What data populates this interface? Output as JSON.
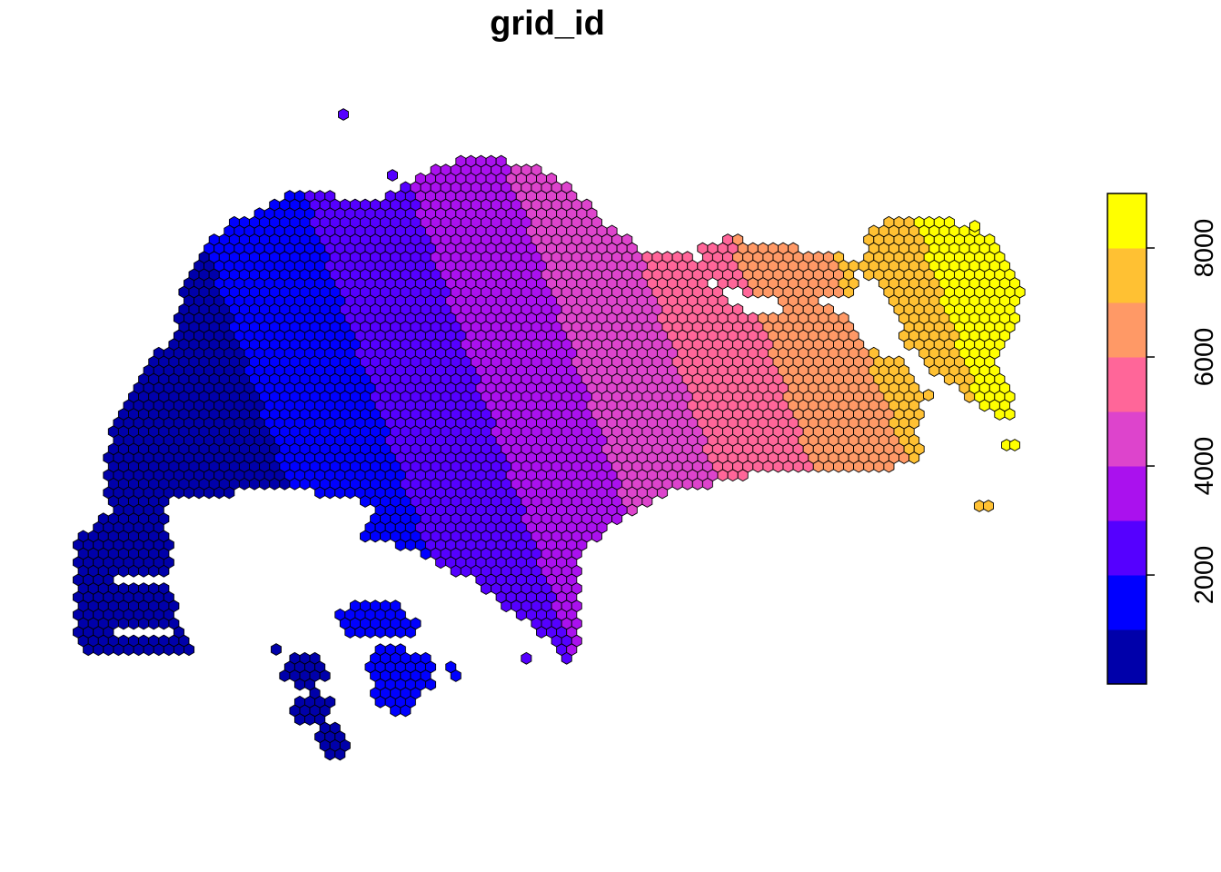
{
  "title": "grid_id",
  "legend": {
    "ticks": [
      {
        "value": 2000,
        "label": "2000"
      },
      {
        "value": 4000,
        "label": "4000"
      },
      {
        "value": 6000,
        "label": "6000"
      },
      {
        "value": 8000,
        "label": "8000"
      }
    ],
    "min": 1,
    "max": 9000,
    "colors": [
      "#0000AA",
      "#0000FF",
      "#5500FF",
      "#AA11EE",
      "#DD44CC",
      "#FF6699",
      "#FF9966",
      "#FFC133",
      "#FFFF00"
    ]
  },
  "map": {
    "hex_outline_color": "#000000",
    "description_values": {
      "id_min": 1,
      "id_max": 9000
    }
  }
}
